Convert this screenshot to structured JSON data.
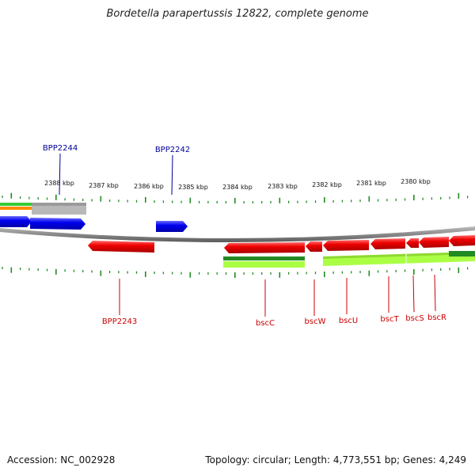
{
  "title": "Bordetella parapertussis 12822, complete genome",
  "footer": {
    "accession": "Accession: NC_002928",
    "topology": "Topology: circular; Length: 4,773,551 bp; Genes: 4,249"
  },
  "colors": {
    "forward_gene": "#0000ee",
    "reverse_gene": "#ee0000",
    "forward_label": "#000099",
    "reverse_label": "#cc0000",
    "tick": "#228b22",
    "backbone": "#808080",
    "feature_light_green": "#aaff44",
    "feature_dark_green": "#228b22",
    "feature_orange": "#ff8c00",
    "feature_grey": "#b8b8b8"
  },
  "scale_labels": [
    "2388 kbp",
    "2387 kbp",
    "2386 kbp",
    "2385 kbp",
    "2384 kbp",
    "2383 kbp",
    "2382 kbp",
    "2381 kbp",
    "2380 kbp"
  ],
  "forward_labels": [
    "BPP2244",
    "BPP2242"
  ],
  "reverse_labels": [
    "BPP2243",
    "bscC",
    "bscW",
    "bscU",
    "bscT",
    "bscS",
    "bscR"
  ]
}
